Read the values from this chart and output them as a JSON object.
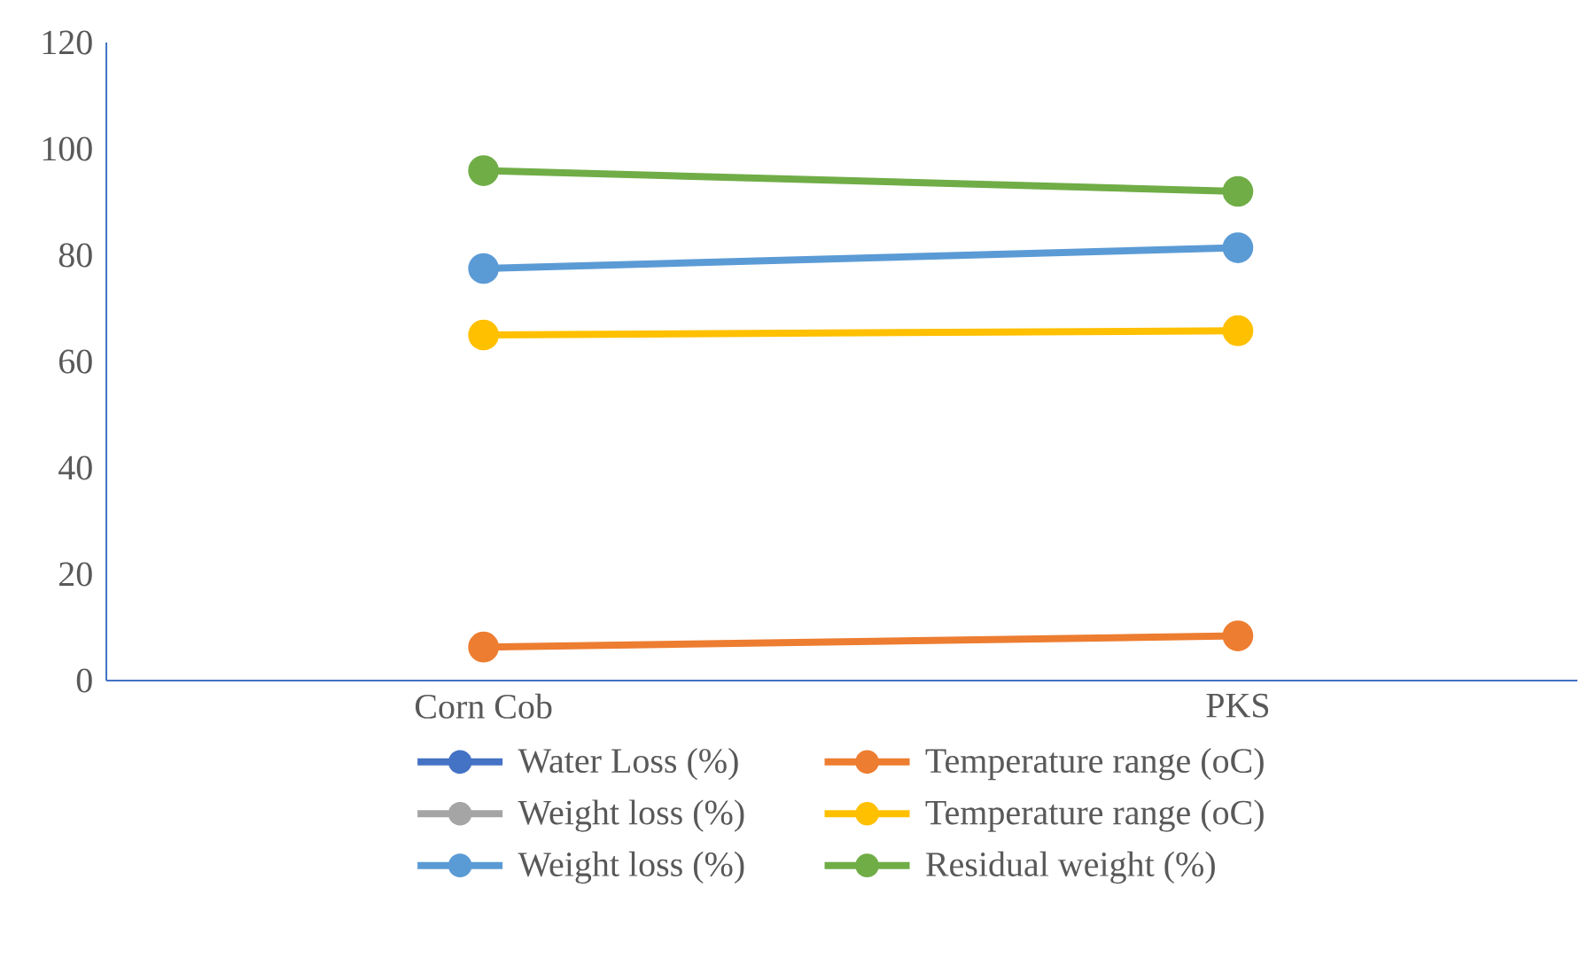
{
  "chart_data": {
    "type": "line",
    "categories": [
      "Corn Cob",
      "PKS"
    ],
    "series": [
      {
        "name": "Water Loss (%)",
        "color": "#4472c4",
        "values": [
          null,
          null
        ]
      },
      {
        "name": "Temperature range (oC)",
        "color": "#ed7d31",
        "values": [
          6.3,
          8.4
        ]
      },
      {
        "name": "Weight loss (%)",
        "color": "#a5a5a5",
        "values": [
          null,
          null
        ]
      },
      {
        "name": "Temperature range (oC)",
        "color": "#ffc000",
        "values": [
          65,
          65.8
        ]
      },
      {
        "name": "Weight loss (%)",
        "color": "#5b9bd5",
        "values": [
          77.5,
          81.4
        ]
      },
      {
        "name": "Residual weight (%)",
        "color": "#70ad47",
        "values": [
          95.9,
          92
        ]
      }
    ],
    "ylim": [
      0,
      120
    ],
    "yticks": [
      0,
      20,
      40,
      60,
      80,
      100,
      120
    ],
    "grid": false,
    "legend": "bottom",
    "marker": "circle",
    "line_style": "solid"
  }
}
